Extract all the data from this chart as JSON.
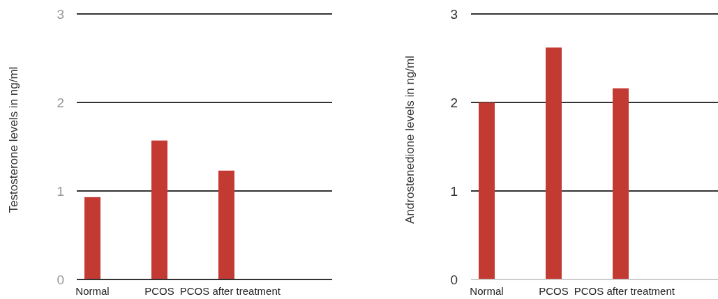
{
  "chart_data": [
    {
      "type": "bar",
      "ylabel": "Testosterone levels in ng/ml",
      "categories": [
        "Normal",
        "PCOS",
        "PCOS after treatment"
      ],
      "values": [
        0.93,
        1.57,
        1.23
      ],
      "color": "#c33a32",
      "ylim": [
        0,
        3
      ],
      "yticks": [
        0,
        1,
        2,
        3
      ],
      "grid": "y"
    },
    {
      "type": "bar",
      "ylabel": "Androstenedione  levels in ng/ml",
      "categories": [
        "Normal",
        "PCOS",
        "PCOS after treatment"
      ],
      "values": [
        2.0,
        2.62,
        2.16
      ],
      "color": "#c33a32",
      "ylim": [
        0,
        3
      ],
      "yticks": [
        0,
        1,
        2,
        3
      ],
      "grid": "y"
    }
  ]
}
